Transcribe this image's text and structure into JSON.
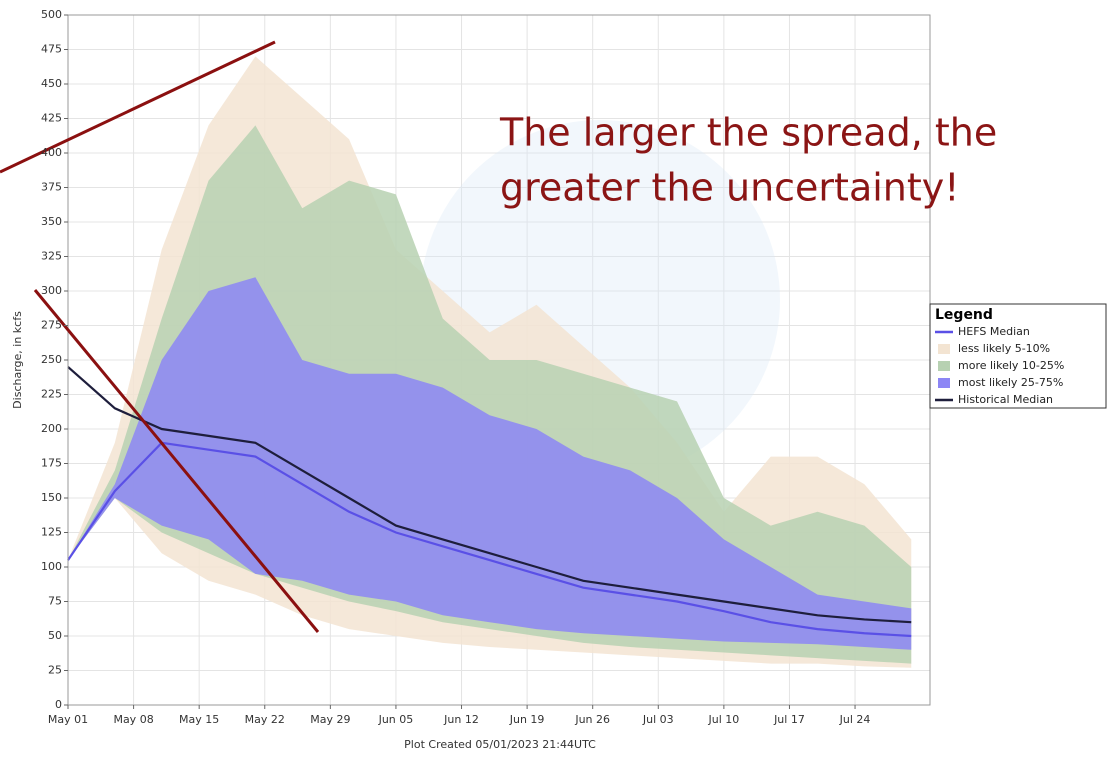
{
  "chart_data": {
    "type": "band",
    "y_label": "Discharge, in kcfs",
    "x_label": "Plot Created 05/01/2023 21:44UTC",
    "annotations": [
      "The larger the spread, the",
      "greater the uncertainty!"
    ],
    "legend_title": "Legend",
    "legend": "right",
    "grid": true,
    "x": [
      "May 01",
      "May 06",
      "May 11",
      "May 16",
      "May 21",
      "May 26",
      "May 31",
      "Jun 05",
      "Jun 10",
      "Jun 15",
      "Jun 20",
      "Jun 25",
      "Jun 30",
      "Jul 05",
      "Jul 10",
      "Jul 15",
      "Jul 20",
      "Jul 25",
      "Jul 30"
    ],
    "xlim": [
      "May 01",
      "Aug 01"
    ],
    "xticks": [
      "May 01",
      "May 08",
      "May 15",
      "May 22",
      "May 29",
      "Jun 05",
      "Jun 12",
      "Jun 19",
      "Jun 26",
      "Jul 03",
      "Jul 10",
      "Jul 17",
      "Jul 24"
    ],
    "ylim": [
      0,
      500
    ],
    "yticks": [
      0,
      25,
      50,
      75,
      100,
      125,
      150,
      175,
      200,
      225,
      250,
      275,
      300,
      325,
      350,
      375,
      400,
      425,
      450,
      475,
      500
    ],
    "series": [
      {
        "name": "HEFS Median",
        "color": "#5a50e6",
        "kind": "line",
        "values": [
          105,
          155,
          190,
          185,
          180,
          160,
          140,
          125,
          115,
          105,
          95,
          85,
          80,
          75,
          68,
          60,
          55,
          52,
          50
        ]
      },
      {
        "name": "less likely 5-10%",
        "color": "#f3e4d2",
        "kind": "band",
        "upper": [
          105,
          190,
          330,
          420,
          470,
          440,
          410,
          330,
          300,
          270,
          290,
          260,
          230,
          190,
          140,
          180,
          180,
          160,
          120
        ],
        "lower": [
          105,
          150,
          110,
          90,
          80,
          65,
          55,
          50,
          45,
          42,
          40,
          38,
          36,
          34,
          32,
          30,
          30,
          28,
          27
        ]
      },
      {
        "name": "more likely 10-25%",
        "color": "#b7d1b2",
        "kind": "band",
        "upper": [
          105,
          170,
          280,
          380,
          420,
          360,
          380,
          370,
          280,
          250,
          250,
          240,
          230,
          220,
          150,
          130,
          140,
          130,
          100
        ],
        "lower": [
          105,
          150,
          125,
          110,
          95,
          85,
          75,
          68,
          60,
          55,
          50,
          45,
          42,
          40,
          38,
          36,
          34,
          32,
          30
        ]
      },
      {
        "name": "most likely 25-75%",
        "color": "#8c86f5",
        "kind": "band",
        "upper": [
          105,
          160,
          250,
          300,
          310,
          250,
          240,
          240,
          230,
          210,
          200,
          180,
          170,
          150,
          120,
          100,
          80,
          75,
          70
        ],
        "lower": [
          105,
          150,
          130,
          120,
          95,
          90,
          80,
          75,
          65,
          60,
          55,
          52,
          50,
          48,
          46,
          45,
          44,
          42,
          40
        ]
      },
      {
        "name": "Historical Median",
        "color": "#1e1e3c",
        "kind": "line",
        "values": [
          245,
          215,
          200,
          195,
          190,
          170,
          150,
          130,
          120,
          110,
          100,
          90,
          85,
          80,
          75,
          70,
          65,
          62,
          60
        ]
      }
    ]
  }
}
